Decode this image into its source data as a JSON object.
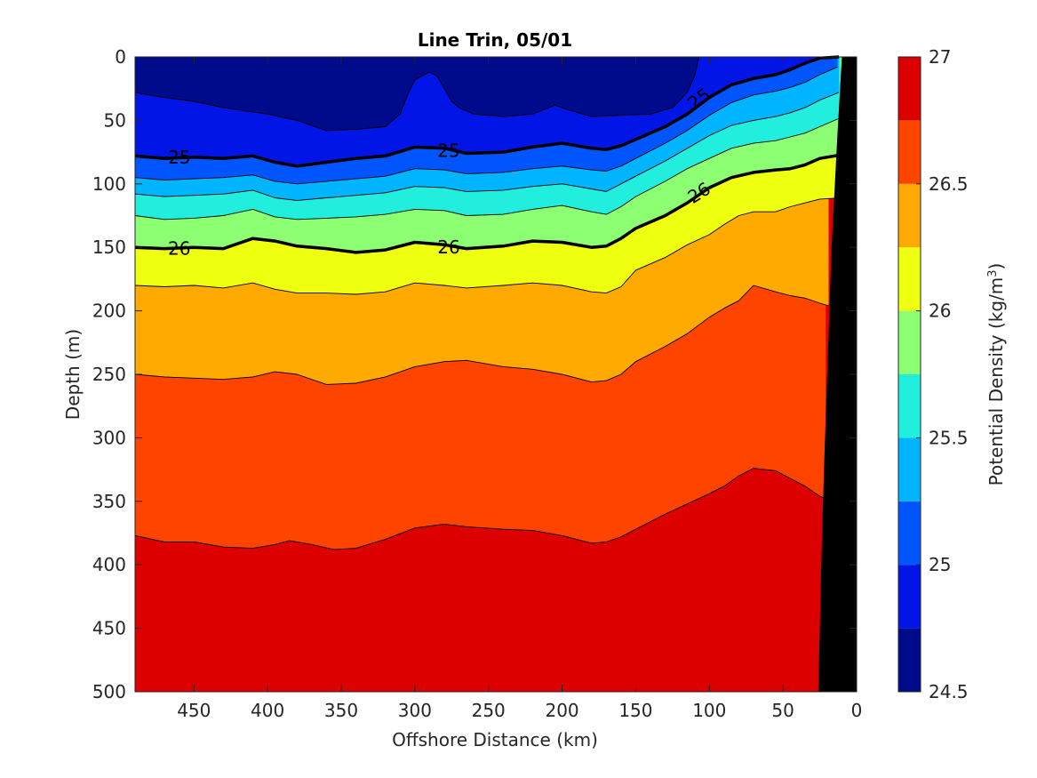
{
  "chart_data": {
    "type": "contour",
    "title": "Line Trin, 05/01",
    "xlabel": "Offshore Distance (km)",
    "ylabel": "Depth (m)",
    "xlim": [
      490,
      0
    ],
    "ylim": [
      0,
      500
    ],
    "x_reversed": true,
    "y_reversed": true,
    "x_ticks": [
      450,
      400,
      350,
      300,
      250,
      200,
      150,
      100,
      50,
      0
    ],
    "y_ticks": [
      0,
      50,
      100,
      150,
      200,
      250,
      300,
      350,
      400,
      450,
      500
    ],
    "colorbar": {
      "label": "Potential Density (kg/m",
      "label_sup": "3",
      "label_end": ")",
      "min": 24.5,
      "max": 27,
      "step": 0.25,
      "tick_values": [
        24.5,
        25,
        25.5,
        26,
        26.5,
        27
      ],
      "tick_labels": [
        "24.5",
        "25",
        "25.5",
        "26",
        "26.5",
        "27"
      ],
      "colors": [
        "#000b8c",
        "#0015e6",
        "#0055ff",
        "#00b4ff",
        "#22eedd",
        "#8cff73",
        "#eeff0f",
        "#ffaa00",
        "#ff4400",
        "#dd0000"
      ]
    },
    "bottom_mask_color": "#000000",
    "isopycnals": [
      {
        "level": 24.75,
        "points": [
          [
            490,
            28
          ],
          [
            470,
            32
          ],
          [
            450,
            35
          ],
          [
            430,
            40
          ],
          [
            400,
            45
          ],
          [
            380,
            50
          ],
          [
            360,
            58
          ],
          [
            340,
            57
          ],
          [
            320,
            55
          ],
          [
            310,
            45
          ],
          [
            305,
            30
          ],
          [
            300,
            18
          ],
          [
            290,
            12
          ],
          [
            285,
            15
          ],
          [
            280,
            25
          ],
          [
            275,
            35
          ],
          [
            270,
            40
          ],
          [
            260,
            45
          ],
          [
            240,
            47
          ],
          [
            220,
            45
          ],
          [
            205,
            38
          ],
          [
            195,
            42
          ],
          [
            180,
            47
          ],
          [
            160,
            46
          ],
          [
            140,
            45
          ],
          [
            125,
            40
          ],
          [
            115,
            28
          ],
          [
            110,
            15
          ],
          [
            107,
            0
          ]
        ]
      },
      {
        "level": 25.0,
        "points": [
          [
            490,
            78
          ],
          [
            470,
            80
          ],
          [
            450,
            79
          ],
          [
            430,
            80
          ],
          [
            410,
            78
          ],
          [
            395,
            83
          ],
          [
            380,
            86
          ],
          [
            360,
            83
          ],
          [
            340,
            80
          ],
          [
            320,
            78
          ],
          [
            300,
            71
          ],
          [
            280,
            72
          ],
          [
            265,
            76
          ],
          [
            240,
            75
          ],
          [
            220,
            71
          ],
          [
            200,
            68
          ],
          [
            180,
            72
          ],
          [
            170,
            73
          ],
          [
            160,
            70
          ],
          [
            150,
            65
          ],
          [
            130,
            55
          ],
          [
            115,
            45
          ],
          [
            100,
            32
          ],
          [
            85,
            22
          ],
          [
            70,
            17
          ],
          [
            55,
            14
          ],
          [
            45,
            10
          ],
          [
            35,
            5
          ],
          [
            25,
            1
          ],
          [
            12,
            0
          ]
        ]
      },
      {
        "level": 25.25,
        "points": [
          [
            490,
            95
          ],
          [
            470,
            97
          ],
          [
            450,
            96
          ],
          [
            430,
            95
          ],
          [
            410,
            93
          ],
          [
            395,
            98
          ],
          [
            380,
            100
          ],
          [
            360,
            98
          ],
          [
            340,
            96
          ],
          [
            320,
            94
          ],
          [
            300,
            88
          ],
          [
            280,
            89
          ],
          [
            265,
            92
          ],
          [
            240,
            91
          ],
          [
            220,
            88
          ],
          [
            200,
            86
          ],
          [
            180,
            89
          ],
          [
            170,
            90
          ],
          [
            160,
            86
          ],
          [
            150,
            80
          ],
          [
            130,
            68
          ],
          [
            115,
            58
          ],
          [
            100,
            46
          ],
          [
            85,
            36
          ],
          [
            70,
            30
          ],
          [
            55,
            27
          ],
          [
            45,
            24
          ],
          [
            35,
            20
          ],
          [
            25,
            14
          ],
          [
            13,
            8
          ]
        ]
      },
      {
        "level": 25.5,
        "points": [
          [
            490,
            108
          ],
          [
            470,
            110
          ],
          [
            450,
            109
          ],
          [
            430,
            108
          ],
          [
            410,
            105
          ],
          [
            395,
            111
          ],
          [
            380,
            113
          ],
          [
            360,
            111
          ],
          [
            340,
            109
          ],
          [
            320,
            107
          ],
          [
            300,
            102
          ],
          [
            280,
            103
          ],
          [
            265,
            106
          ],
          [
            240,
            105
          ],
          [
            220,
            102
          ],
          [
            200,
            100
          ],
          [
            180,
            104
          ],
          [
            170,
            106
          ],
          [
            160,
            100
          ],
          [
            150,
            94
          ],
          [
            130,
            82
          ],
          [
            115,
            72
          ],
          [
            100,
            62
          ],
          [
            85,
            54
          ],
          [
            70,
            50
          ],
          [
            55,
            47
          ],
          [
            45,
            44
          ],
          [
            35,
            40
          ],
          [
            25,
            34
          ],
          [
            12,
            28
          ]
        ]
      },
      {
        "level": 25.75,
        "points": [
          [
            490,
            125
          ],
          [
            470,
            128
          ],
          [
            450,
            127
          ],
          [
            430,
            125
          ],
          [
            410,
            120
          ],
          [
            395,
            126
          ],
          [
            380,
            128
          ],
          [
            360,
            127
          ],
          [
            340,
            126
          ],
          [
            320,
            124
          ],
          [
            300,
            120
          ],
          [
            280,
            121
          ],
          [
            265,
            125
          ],
          [
            240,
            124
          ],
          [
            220,
            120
          ],
          [
            200,
            117
          ],
          [
            180,
            122
          ],
          [
            170,
            124
          ],
          [
            160,
            118
          ],
          [
            150,
            110
          ],
          [
            130,
            98
          ],
          [
            115,
            88
          ],
          [
            100,
            80
          ],
          [
            85,
            72
          ],
          [
            70,
            68
          ],
          [
            55,
            66
          ],
          [
            45,
            63
          ],
          [
            35,
            60
          ],
          [
            25,
            55
          ],
          [
            11,
            48
          ]
        ]
      },
      {
        "level": 26.0,
        "points": [
          [
            490,
            150
          ],
          [
            470,
            151
          ],
          [
            450,
            150
          ],
          [
            430,
            151
          ],
          [
            410,
            143
          ],
          [
            395,
            145
          ],
          [
            380,
            149
          ],
          [
            360,
            151
          ],
          [
            340,
            154
          ],
          [
            320,
            152
          ],
          [
            300,
            146
          ],
          [
            280,
            148
          ],
          [
            265,
            151
          ],
          [
            240,
            149
          ],
          [
            220,
            145
          ],
          [
            200,
            146
          ],
          [
            180,
            150
          ],
          [
            170,
            149
          ],
          [
            160,
            143
          ],
          [
            150,
            135
          ],
          [
            130,
            125
          ],
          [
            115,
            115
          ],
          [
            100,
            103
          ],
          [
            85,
            95
          ],
          [
            70,
            91
          ],
          [
            55,
            89
          ],
          [
            45,
            88
          ],
          [
            35,
            85
          ],
          [
            25,
            80
          ],
          [
            10,
            77
          ]
        ]
      },
      {
        "level": 26.25,
        "points": [
          [
            490,
            180
          ],
          [
            470,
            181
          ],
          [
            450,
            180
          ],
          [
            430,
            182
          ],
          [
            410,
            178
          ],
          [
            395,
            183
          ],
          [
            380,
            186
          ],
          [
            360,
            186
          ],
          [
            340,
            187
          ],
          [
            320,
            185
          ],
          [
            300,
            178
          ],
          [
            280,
            180
          ],
          [
            265,
            182
          ],
          [
            240,
            180
          ],
          [
            220,
            178
          ],
          [
            200,
            180
          ],
          [
            180,
            185
          ],
          [
            170,
            186
          ],
          [
            160,
            181
          ],
          [
            150,
            168
          ],
          [
            130,
            158
          ],
          [
            115,
            148
          ],
          [
            100,
            140
          ],
          [
            90,
            132
          ],
          [
            80,
            125
          ],
          [
            70,
            122
          ],
          [
            55,
            122
          ],
          [
            45,
            118
          ],
          [
            35,
            115
          ],
          [
            25,
            112
          ],
          [
            10,
            111
          ]
        ]
      },
      {
        "level": 26.5,
        "points": [
          [
            490,
            250
          ],
          [
            470,
            252
          ],
          [
            450,
            253
          ],
          [
            430,
            254
          ],
          [
            410,
            252
          ],
          [
            395,
            248
          ],
          [
            380,
            250
          ],
          [
            360,
            258
          ],
          [
            340,
            257
          ],
          [
            320,
            252
          ],
          [
            300,
            244
          ],
          [
            280,
            240
          ],
          [
            265,
            239
          ],
          [
            240,
            244
          ],
          [
            220,
            246
          ],
          [
            200,
            250
          ],
          [
            180,
            256
          ],
          [
            170,
            255
          ],
          [
            160,
            250
          ],
          [
            150,
            240
          ],
          [
            130,
            228
          ],
          [
            115,
            218
          ],
          [
            100,
            205
          ],
          [
            90,
            198
          ],
          [
            80,
            192
          ],
          [
            70,
            180
          ],
          [
            55,
            185
          ],
          [
            45,
            188
          ],
          [
            35,
            190
          ],
          [
            25,
            194
          ],
          [
            19,
            196
          ]
        ]
      },
      {
        "level": 26.75,
        "points": [
          [
            490,
            377
          ],
          [
            470,
            382
          ],
          [
            450,
            382
          ],
          [
            430,
            386
          ],
          [
            410,
            387
          ],
          [
            395,
            384
          ],
          [
            385,
            381
          ],
          [
            370,
            384
          ],
          [
            355,
            388
          ],
          [
            340,
            387
          ],
          [
            320,
            380
          ],
          [
            300,
            371
          ],
          [
            280,
            368
          ],
          [
            265,
            370
          ],
          [
            240,
            372
          ],
          [
            220,
            373
          ],
          [
            200,
            377
          ],
          [
            180,
            383
          ],
          [
            170,
            382
          ],
          [
            160,
            378
          ],
          [
            150,
            372
          ],
          [
            130,
            360
          ],
          [
            115,
            352
          ],
          [
            100,
            344
          ],
          [
            90,
            338
          ],
          [
            80,
            330
          ],
          [
            70,
            324
          ],
          [
            55,
            326
          ],
          [
            45,
            332
          ],
          [
            35,
            338
          ],
          [
            25,
            346
          ],
          [
            21,
            348
          ]
        ]
      }
    ],
    "labels": [
      {
        "text": "25",
        "x": 460,
        "y": 79,
        "angle": 0
      },
      {
        "text": "25",
        "x": 277,
        "y": 74,
        "angle": 0
      },
      {
        "text": "25",
        "x": 107,
        "y": 33,
        "angle": -36
      },
      {
        "text": "26",
        "x": 460,
        "y": 151,
        "angle": 0
      },
      {
        "text": "26",
        "x": 277,
        "y": 150,
        "angle": 0
      },
      {
        "text": "26",
        "x": 107,
        "y": 107,
        "angle": -32
      }
    ],
    "bold_levels": [
      25.0,
      26.0
    ],
    "coast_profile": [
      [
        10,
        0
      ],
      [
        13,
        60
      ],
      [
        17,
        150
      ],
      [
        20,
        250
      ],
      [
        22,
        320
      ],
      [
        24,
        400
      ],
      [
        25,
        450
      ],
      [
        26,
        500
      ]
    ]
  }
}
